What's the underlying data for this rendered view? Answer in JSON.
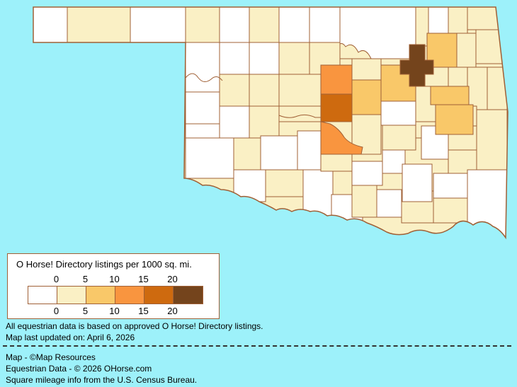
{
  "colors": {
    "background": "#9DF1FA",
    "county_border": "#A06036",
    "state_border": "#A06036",
    "legend_border": "#A06036",
    "legend_background": "#FFFFFF",
    "dashed_line": "#333333",
    "text": "#000000"
  },
  "legend": {
    "title": "O Horse! Directory listings per 1000 sq. mi.",
    "tick_labels": [
      "0",
      "5",
      "10",
      "15",
      "20"
    ],
    "level_colors": [
      "#FFFFFF",
      "#FAF0C5",
      "#F9C869",
      "#F9953F",
      "#CE6A0F",
      "#74441C"
    ]
  },
  "map": {
    "subject": "O Horse! Directory listings per 1000 sq. mi.",
    "value_breaks": [
      0,
      5,
      10,
      15,
      20
    ]
  },
  "footnotes": [
    "All equestrian data is based on approved O Horse! Directory listings.",
    "Map last updated on: April 6, 2026"
  ],
  "credits": [
    "Map - ©Map Resources",
    "Equestrian Data - © 2026 OHorse.com",
    "Square mileage info from the U.S. Census Bureau."
  ]
}
